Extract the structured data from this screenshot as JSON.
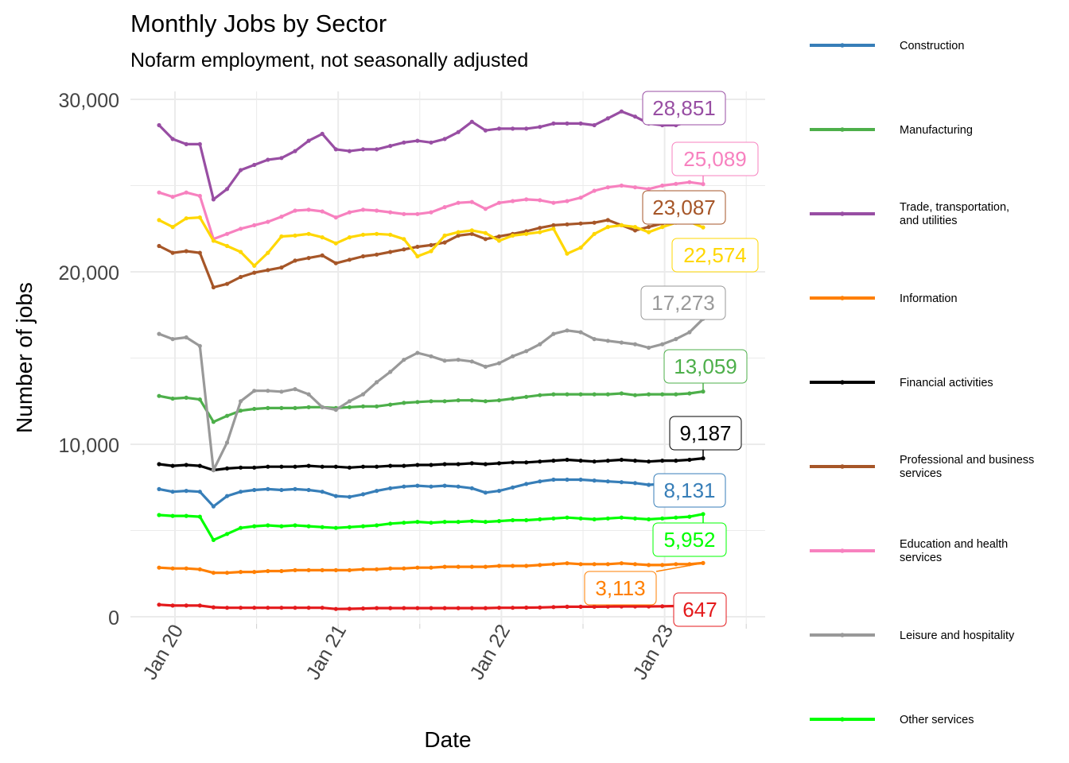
{
  "chart_data": {
    "type": "line",
    "title": "Monthly Jobs by Sector",
    "subtitle": "Nofarm employment, not seasonally adjusted",
    "xlabel": "Date",
    "ylabel": "Number of jobs",
    "x_ticks": [
      "Jan 20",
      "Jan 21",
      "Jan 22",
      "Jan 23"
    ],
    "y_ticks": [
      "0",
      "10,000",
      "20,000",
      "30,000"
    ],
    "ylim": [
      0,
      30000
    ],
    "legend": "right",
    "grid": true,
    "series": [
      {
        "name": "Construction",
        "color": "#377EB8",
        "end_label": "8,131",
        "values": [
          7400,
          7250,
          7300,
          7250,
          6400,
          7000,
          7250,
          7350,
          7400,
          7350,
          7400,
          7350,
          7250,
          7000,
          6950,
          7100,
          7300,
          7450,
          7550,
          7600,
          7550,
          7600,
          7550,
          7450,
          7200,
          7300,
          7500,
          7700,
          7850,
          7950,
          7950,
          7950,
          7900,
          7850,
          7800,
          7750,
          7650,
          7700,
          7800,
          7900,
          8131
        ]
      },
      {
        "name": "Manufacturing",
        "color": "#4DAF4A",
        "end_label": "13,059",
        "values": [
          12800,
          12650,
          12700,
          12600,
          11300,
          11650,
          11950,
          12050,
          12100,
          12100,
          12100,
          12150,
          12150,
          12100,
          12150,
          12200,
          12200,
          12300,
          12400,
          12450,
          12500,
          12500,
          12550,
          12550,
          12500,
          12550,
          12650,
          12750,
          12850,
          12900,
          12900,
          12900,
          12900,
          12900,
          12950,
          12850,
          12900,
          12900,
          12900,
          12950,
          13059
        ]
      },
      {
        "name": "Trade, transportation,\nand utilities",
        "color": "#984EA3",
        "end_label": "28,851",
        "values": [
          28500,
          27700,
          27400,
          27400,
          24200,
          24800,
          25900,
          26200,
          26500,
          26600,
          27000,
          27600,
          28000,
          27100,
          27000,
          27100,
          27100,
          27300,
          27500,
          27600,
          27500,
          27700,
          28100,
          28700,
          28200,
          28300,
          28300,
          28300,
          28400,
          28600,
          28600,
          28600,
          28500,
          28900,
          29300,
          29000,
          28600,
          28500,
          28500,
          28700,
          28851
        ]
      },
      {
        "name": "Information",
        "color": "#FF7F00",
        "end_label": "3,113",
        "values": [
          2850,
          2800,
          2800,
          2750,
          2550,
          2550,
          2600,
          2600,
          2650,
          2650,
          2700,
          2700,
          2700,
          2700,
          2700,
          2750,
          2750,
          2800,
          2800,
          2850,
          2850,
          2900,
          2900,
          2900,
          2900,
          2950,
          2950,
          2950,
          3000,
          3050,
          3100,
          3050,
          3050,
          3050,
          3100,
          3050,
          3000,
          3000,
          3050,
          3050,
          3113
        ]
      },
      {
        "name": "Financial activities",
        "color": "#000000",
        "end_label": "9,187",
        "values": [
          8850,
          8750,
          8800,
          8750,
          8500,
          8600,
          8650,
          8650,
          8700,
          8700,
          8700,
          8750,
          8700,
          8700,
          8650,
          8700,
          8700,
          8750,
          8750,
          8800,
          8800,
          8850,
          8850,
          8900,
          8850,
          8900,
          8950,
          8950,
          9000,
          9050,
          9100,
          9050,
          9000,
          9050,
          9100,
          9050,
          9000,
          9050,
          9050,
          9100,
          9187
        ]
      },
      {
        "name": "Professional and business\nservices",
        "color": "#A65628",
        "end_label": "23,087",
        "values": [
          21500,
          21100,
          21200,
          21100,
          19100,
          19300,
          19700,
          19950,
          20100,
          20250,
          20650,
          20800,
          20950,
          20500,
          20700,
          20900,
          21000,
          21150,
          21300,
          21450,
          21550,
          21700,
          22100,
          22200,
          21900,
          22050,
          22200,
          22350,
          22550,
          22700,
          22750,
          22800,
          22850,
          23000,
          22700,
          22400,
          22600,
          22800,
          22950,
          23000,
          23087
        ]
      },
      {
        "name": "Education and health\nservices",
        "color": "#F781BF",
        "end_label": "25,089",
        "values": [
          24600,
          24350,
          24600,
          24400,
          21900,
          22200,
          22500,
          22700,
          22900,
          23200,
          23550,
          23600,
          23500,
          23150,
          23450,
          23600,
          23550,
          23450,
          23350,
          23350,
          23450,
          23750,
          24000,
          24050,
          23650,
          24000,
          24100,
          24200,
          24150,
          24000,
          24100,
          24300,
          24700,
          24900,
          25000,
          24900,
          24800,
          25000,
          25100,
          25200,
          25089
        ]
      },
      {
        "name": "Leisure and hospitality",
        "color": "#999999",
        "end_label": "17,273",
        "values": [
          16400,
          16100,
          16200,
          15700,
          8500,
          10100,
          12500,
          13100,
          13100,
          13050,
          13200,
          12900,
          12150,
          12000,
          12500,
          12900,
          13600,
          14200,
          14900,
          15300,
          15100,
          14850,
          14900,
          14800,
          14500,
          14700,
          15100,
          15400,
          15800,
          16400,
          16600,
          16500,
          16100,
          16000,
          15900,
          15800,
          15600,
          15800,
          16100,
          16500,
          17273
        ]
      },
      {
        "name": "Other services",
        "color": "#00FF00",
        "end_label": "5,952",
        "values": [
          5900,
          5850,
          5850,
          5800,
          4450,
          4800,
          5150,
          5250,
          5300,
          5250,
          5300,
          5250,
          5200,
          5150,
          5200,
          5250,
          5300,
          5400,
          5450,
          5500,
          5450,
          5500,
          5500,
          5550,
          5500,
          5550,
          5600,
          5600,
          5650,
          5700,
          5750,
          5700,
          5650,
          5700,
          5750,
          5700,
          5650,
          5700,
          5750,
          5800,
          5952
        ]
      },
      {
        "name": "",
        "color": "#E41A1C",
        "end_label": "647",
        "values": [
          700,
          650,
          650,
          650,
          550,
          520,
          520,
          520,
          520,
          520,
          520,
          520,
          520,
          450,
          460,
          480,
          500,
          500,
          500,
          500,
          500,
          500,
          500,
          500,
          500,
          520,
          520,
          530,
          540,
          560,
          580,
          580,
          580,
          590,
          600,
          600,
          600,
          610,
          620,
          630,
          647
        ]
      }
    ]
  },
  "colors": {
    "grid": "#EBEBEB",
    "background": "#FFFFFF"
  }
}
